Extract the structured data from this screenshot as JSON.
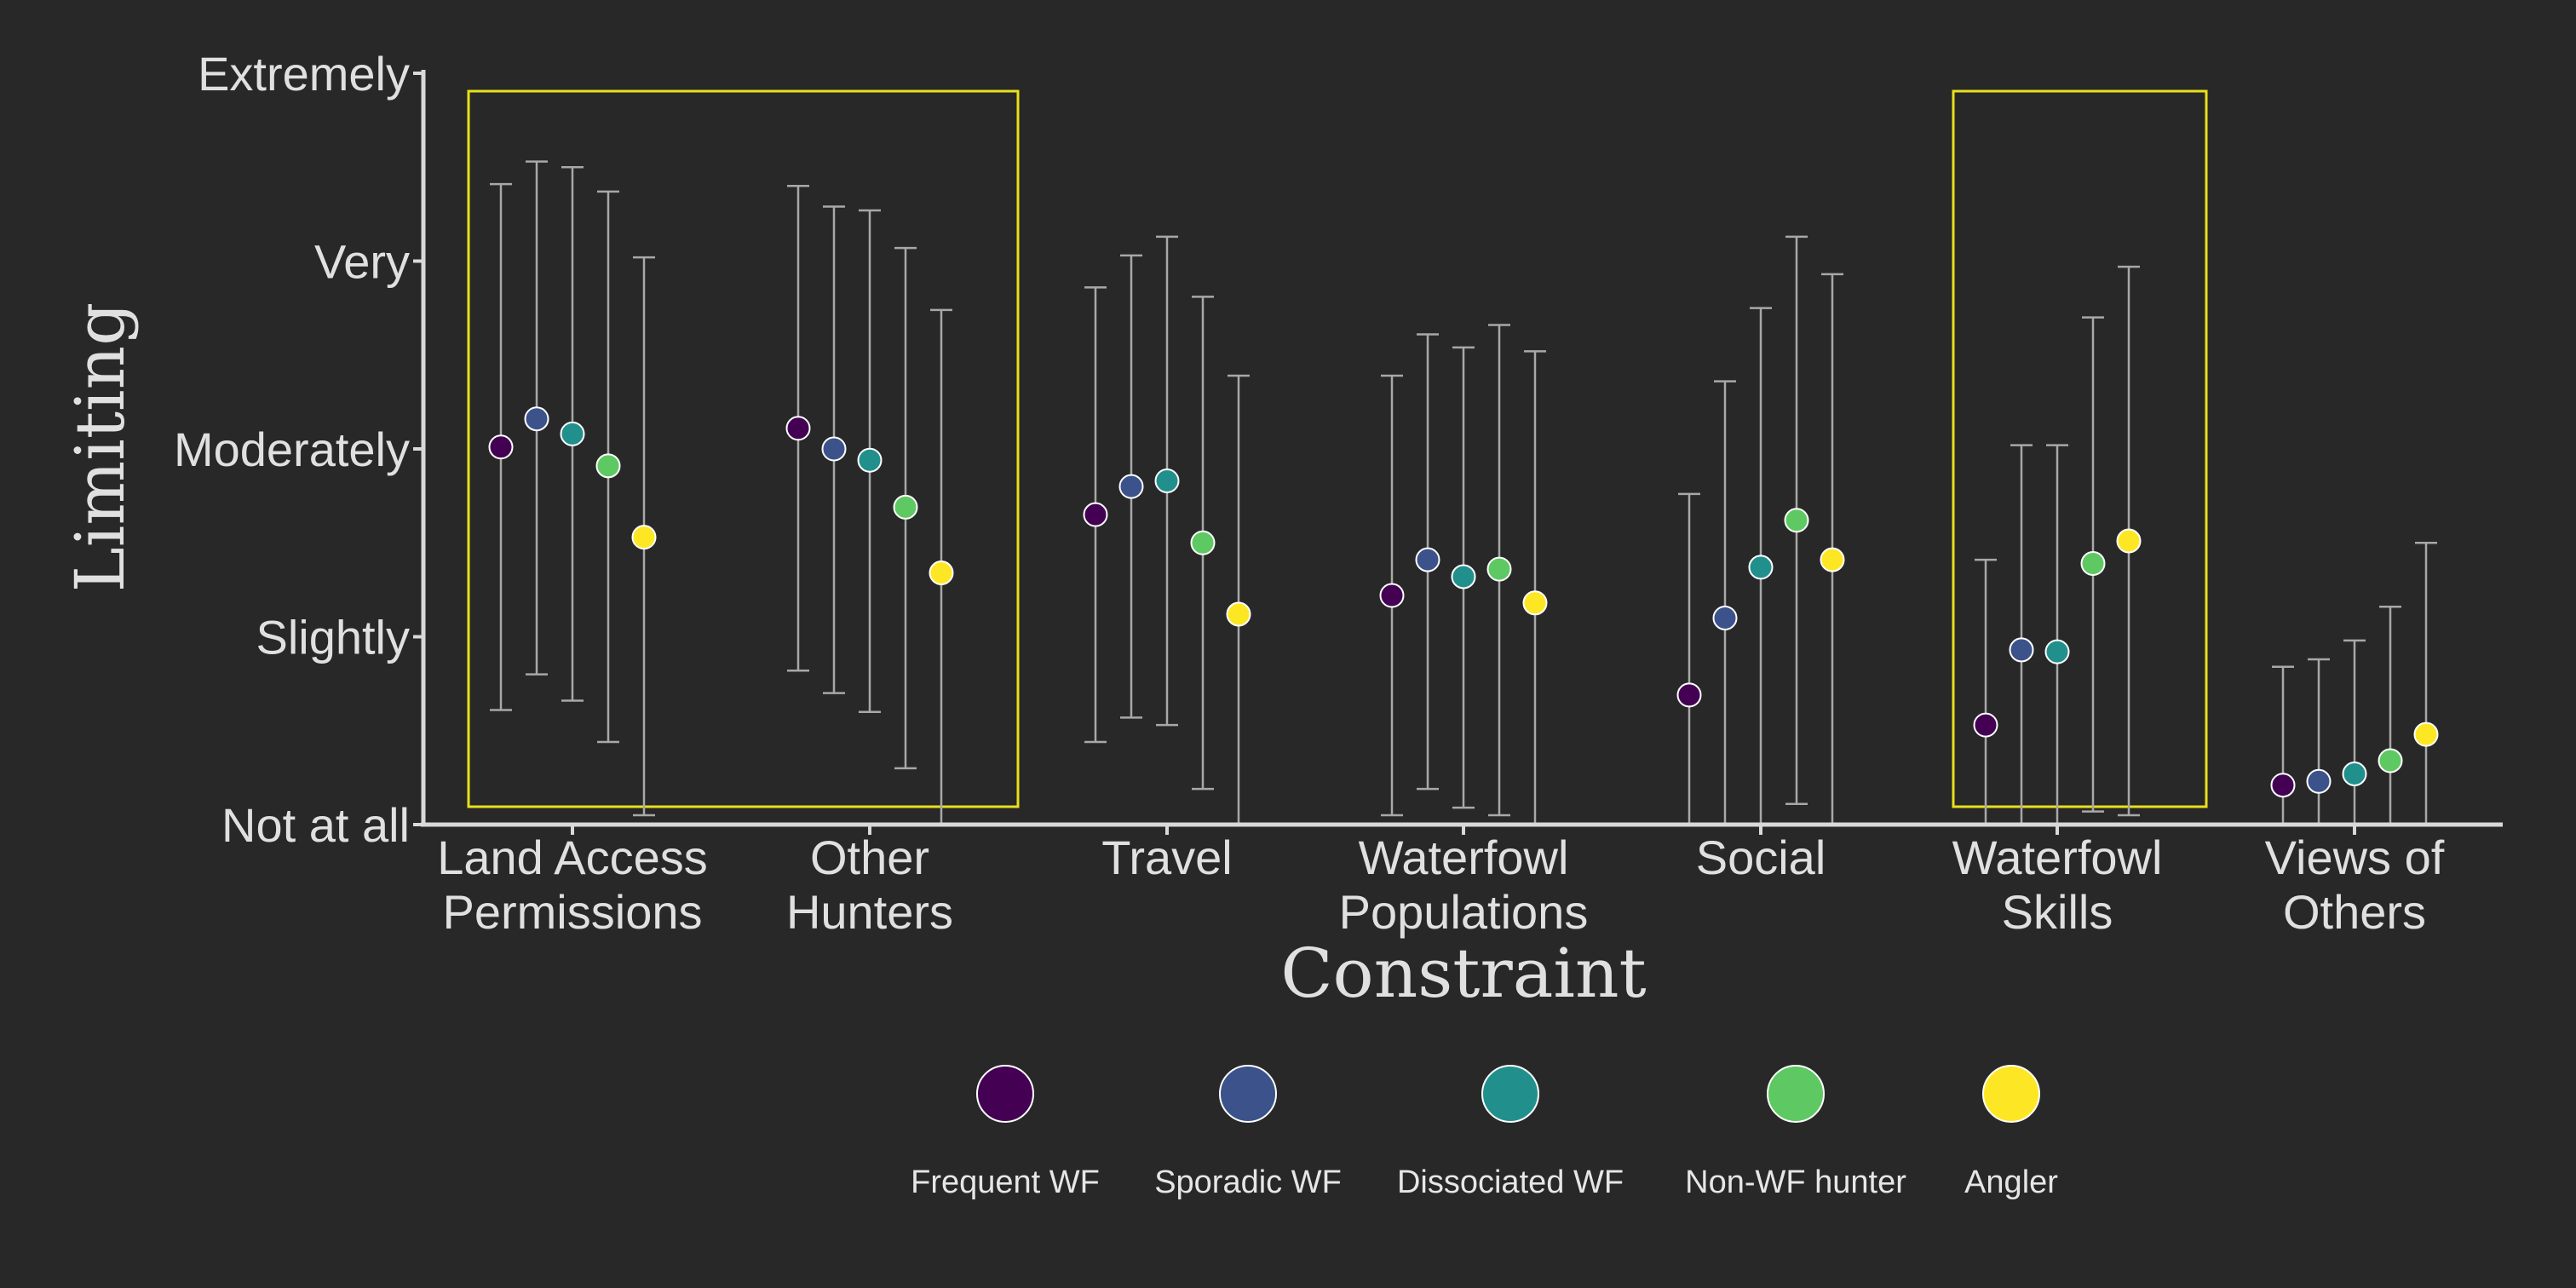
{
  "chart_data": {
    "type": "scatter",
    "xlabel": "Constraint",
    "ylabel": "Limiting",
    "ylim": [
      0,
      4
    ],
    "y_ticks": [
      {
        "value": 0,
        "label": "Not at all"
      },
      {
        "value": 1,
        "label": "Slightly"
      },
      {
        "value": 2,
        "label": "Moderately"
      },
      {
        "value": 3,
        "label": "Very"
      },
      {
        "value": 4,
        "label": "Extremely"
      }
    ],
    "categories": [
      [
        "Land Access",
        "Permissions"
      ],
      [
        "Other",
        "Hunters"
      ],
      [
        "Travel"
      ],
      [
        "Waterfowl",
        "Populations"
      ],
      [
        "Social"
      ],
      [
        "Waterfowl",
        "Skills"
      ],
      [
        "Views of",
        "Others"
      ]
    ],
    "highlighted_categories": [
      0,
      1,
      5
    ],
    "highlight_color": "#e8e01c",
    "legend_placement": "bottom",
    "series": [
      {
        "name": "Frequent WF",
        "color": "#440154",
        "values": [
          2.01,
          2.11,
          1.65,
          1.22,
          0.69,
          0.53,
          0.21
        ],
        "lower": [
          0.61,
          0.82,
          0.44,
          0.05,
          0.0,
          0.0,
          0.0
        ],
        "upper": [
          3.41,
          3.4,
          2.86,
          2.39,
          1.76,
          1.41,
          0.84
        ]
      },
      {
        "name": "Sporadic WF",
        "color": "#3b528b",
        "values": [
          2.16,
          2.0,
          1.8,
          1.41,
          1.1,
          0.93,
          0.23
        ],
        "lower": [
          0.8,
          0.7,
          0.57,
          0.19,
          0.0,
          0.0,
          0.0
        ],
        "upper": [
          3.53,
          3.29,
          3.03,
          2.61,
          2.36,
          2.02,
          0.88
        ]
      },
      {
        "name": "Dissociated WF",
        "color": "#21908d",
        "values": [
          2.08,
          1.94,
          1.83,
          1.32,
          1.37,
          0.92,
          0.27
        ],
        "lower": [
          0.66,
          0.6,
          0.53,
          0.09,
          0.0,
          0.0,
          0.0
        ],
        "upper": [
          3.5,
          3.27,
          3.13,
          2.54,
          2.75,
          2.02,
          0.98
        ]
      },
      {
        "name": "Non-WF hunter",
        "color": "#5ec962",
        "values": [
          1.91,
          1.69,
          1.5,
          1.36,
          1.62,
          1.39,
          0.34
        ],
        "lower": [
          0.44,
          0.3,
          0.19,
          0.05,
          0.11,
          0.07,
          0.0
        ],
        "upper": [
          3.37,
          3.07,
          2.81,
          2.66,
          3.13,
          2.7,
          1.16
        ]
      },
      {
        "name": "Angler",
        "color": "#fde725",
        "values": [
          1.53,
          1.34,
          1.12,
          1.18,
          1.41,
          1.51,
          0.48
        ],
        "lower": [
          0.05,
          0.0,
          0.0,
          0.0,
          0.0,
          0.05,
          0.0
        ],
        "upper": [
          3.02,
          2.74,
          2.39,
          2.52,
          2.93,
          2.97,
          1.5
        ]
      }
    ]
  }
}
